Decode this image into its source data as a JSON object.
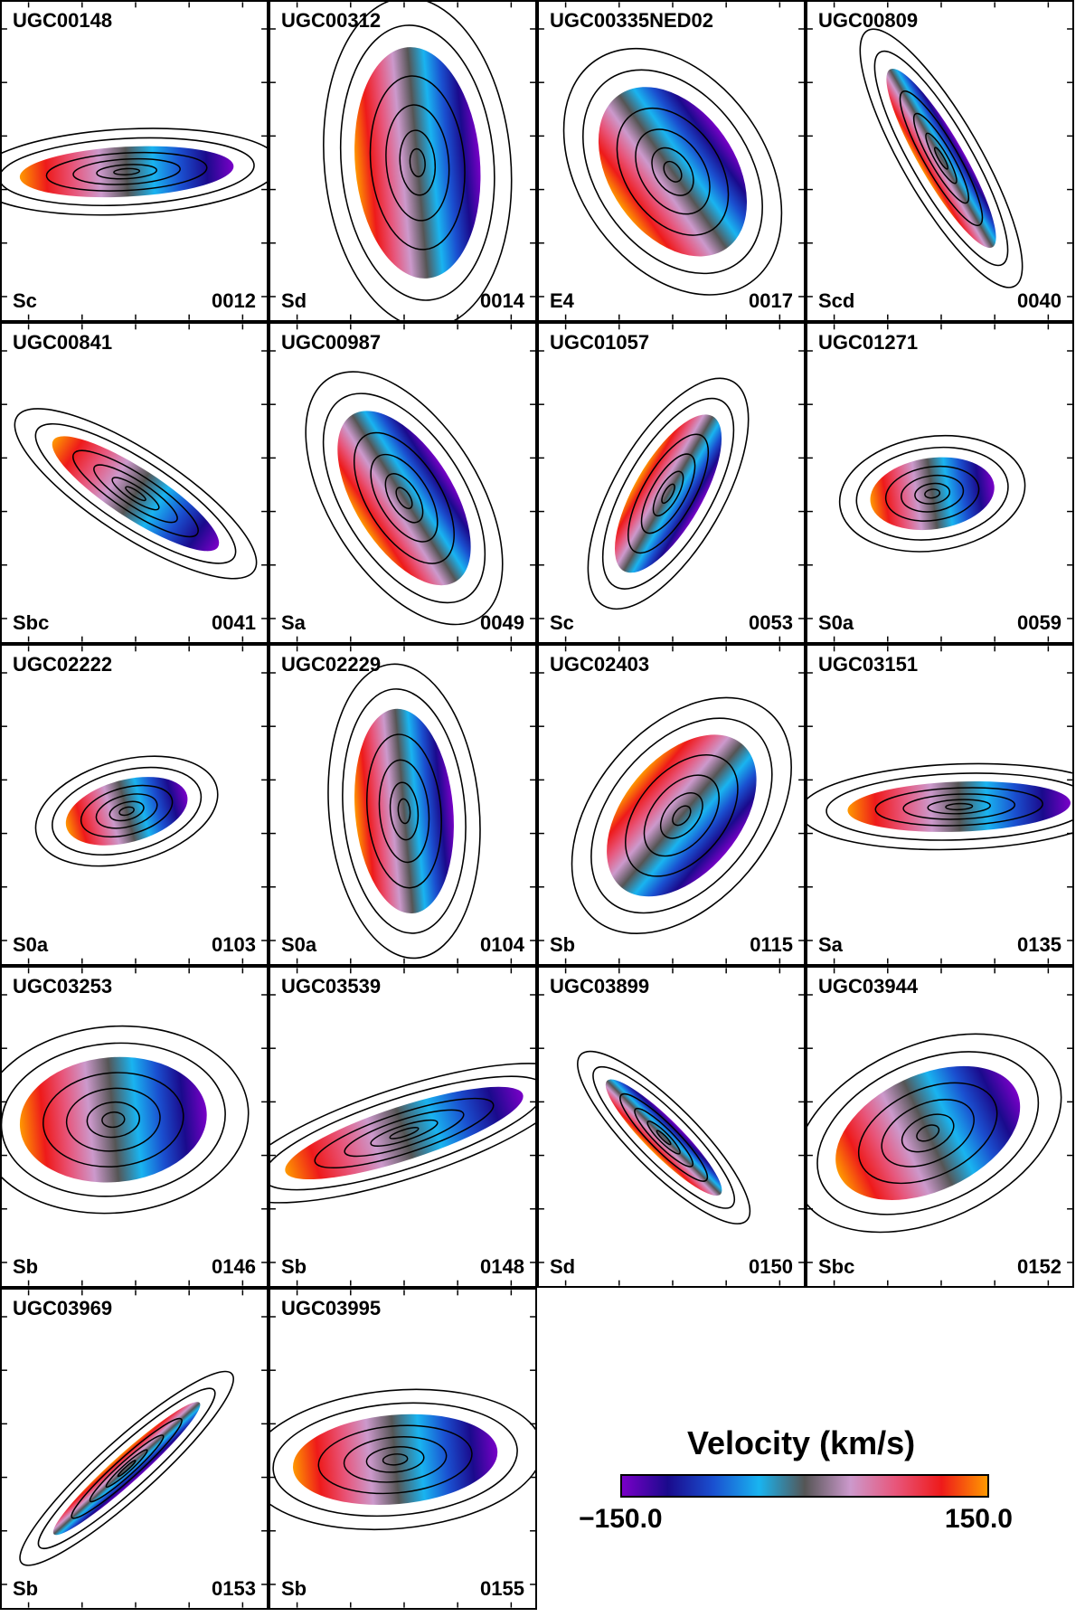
{
  "panels": [
    {
      "name": "UGC00148",
      "type": "Sc",
      "id": "0012"
    },
    {
      "name": "UGC00312",
      "type": "Sd",
      "id": "0014"
    },
    {
      "name": "UGC00335NED02",
      "type": "E4",
      "id": "0017"
    },
    {
      "name": "UGC00809",
      "type": "Scd",
      "id": "0040"
    },
    {
      "name": "UGC00841",
      "type": "Sbc",
      "id": "0041"
    },
    {
      "name": "UGC00987",
      "type": "Sa",
      "id": "0049"
    },
    {
      "name": "UGC01057",
      "type": "Sc",
      "id": "0053"
    },
    {
      "name": "UGC01271",
      "type": "S0a",
      "id": "0059"
    },
    {
      "name": "UGC02222",
      "type": "S0a",
      "id": "0103"
    },
    {
      "name": "UGC02229",
      "type": "S0a",
      "id": "0104"
    },
    {
      "name": "UGC02403",
      "type": "Sb",
      "id": "0115"
    },
    {
      "name": "UGC03151",
      "type": "Sa",
      "id": "0135"
    },
    {
      "name": "UGC03253",
      "type": "Sb",
      "id": "0146"
    },
    {
      "name": "UGC03539",
      "type": "Sb",
      "id": "0148"
    },
    {
      "name": "UGC03899",
      "type": "Sd",
      "id": "0150"
    },
    {
      "name": "UGC03944",
      "type": "Sbc",
      "id": "0152"
    },
    {
      "name": "UGC03969",
      "type": "Sb",
      "id": "0153"
    },
    {
      "name": "UGC03995",
      "type": "Sb",
      "id": "0155"
    }
  ],
  "legend": {
    "title": "Velocity (km/s)",
    "min_label": "−150.0",
    "max_label": "150.0",
    "min_value": -150,
    "max_value": 150,
    "colormap": [
      "#7a00c8",
      "#1a0a8c",
      "#1a50d0",
      "#19b4f0",
      "#555555",
      "#cc99cc",
      "#e8557a",
      "#ee1a1a",
      "#ff9900"
    ]
  }
}
